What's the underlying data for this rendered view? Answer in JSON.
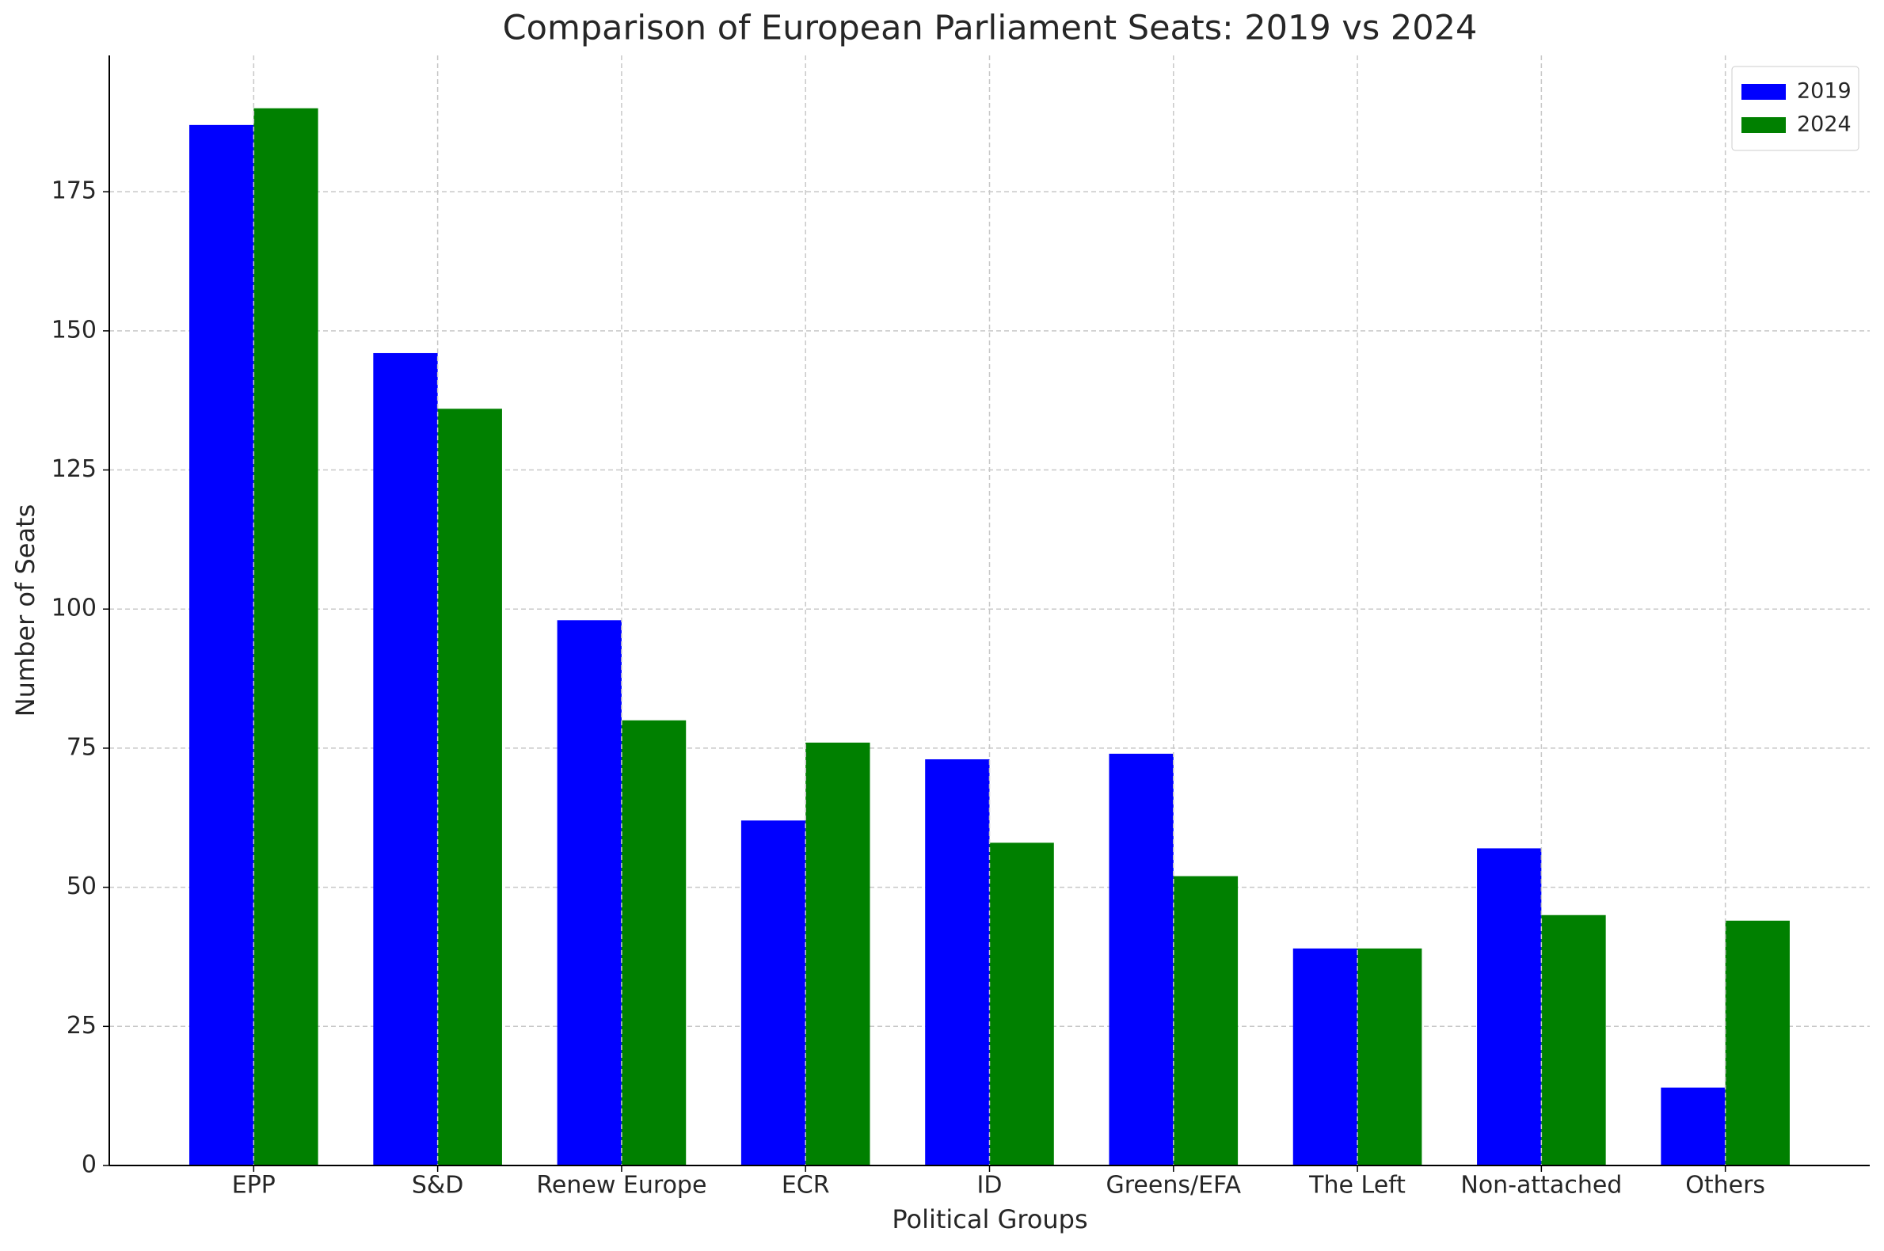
{
  "chart_data": {
    "type": "bar",
    "title": "Comparison of European Parliament Seats: 2019 vs 2024",
    "x_label": "Political Groups",
    "y_label": "Number of Seats",
    "categories": [
      "EPP",
      "S&D",
      "Renew Europe",
      "ECR",
      "ID",
      "Greens/EFA",
      "The Left",
      "Non-attached",
      "Others"
    ],
    "series": [
      {
        "name": "2019",
        "color": "#0000ff",
        "values": [
          187,
          146,
          98,
          62,
          73,
          74,
          39,
          57,
          14
        ]
      },
      {
        "name": "2024",
        "color": "#008000",
        "values": [
          190,
          136,
          80,
          76,
          58,
          52,
          39,
          45,
          44
        ]
      }
    ],
    "ylim": [
      0,
      199.5
    ],
    "yticks": [
      0,
      25,
      50,
      75,
      100,
      125,
      150,
      175
    ],
    "grid": true,
    "legend": "upper right"
  }
}
